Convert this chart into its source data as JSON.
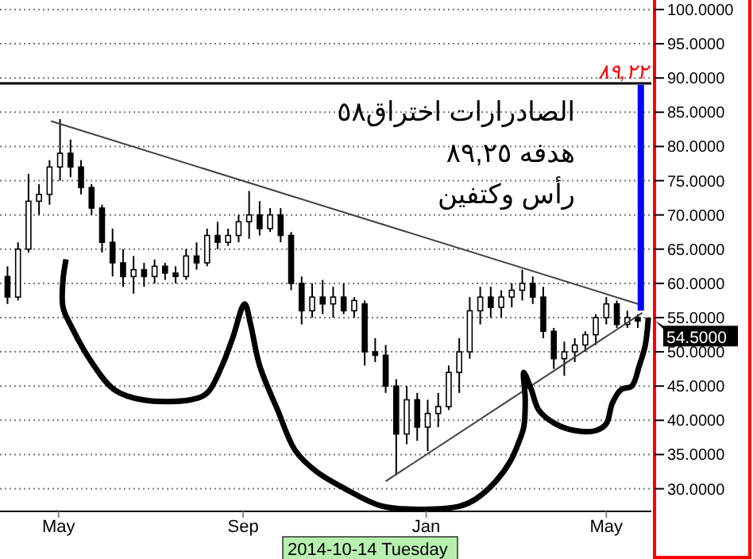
{
  "chart_data": {
    "type": "candlestick",
    "x": [
      "2014-03-28",
      "2014-04-04",
      "2014-04-11",
      "2014-04-18",
      "2014-04-25",
      "2014-05-02",
      "2014-05-09",
      "2014-05-16",
      "2014-05-23",
      "2014-05-30",
      "2014-06-06",
      "2014-06-13",
      "2014-06-20",
      "2014-06-27",
      "2014-07-04",
      "2014-07-11",
      "2014-07-18",
      "2014-07-25",
      "2014-08-01",
      "2014-08-08",
      "2014-08-15",
      "2014-08-22",
      "2014-08-29",
      "2014-09-05",
      "2014-09-12",
      "2014-09-19",
      "2014-09-26",
      "2014-10-03",
      "2014-10-10",
      "2014-10-17",
      "2014-10-24",
      "2014-10-31",
      "2014-11-07",
      "2014-11-14",
      "2014-11-21",
      "2014-11-28",
      "2014-12-05",
      "2014-12-12",
      "2014-12-19",
      "2014-12-26",
      "2015-01-02",
      "2015-01-09",
      "2015-01-16",
      "2015-01-23",
      "2015-01-30",
      "2015-02-06",
      "2015-02-13",
      "2015-02-20",
      "2015-02-27",
      "2015-03-06",
      "2015-03-13",
      "2015-03-20",
      "2015-03-27",
      "2015-04-03",
      "2015-04-10",
      "2015-04-17",
      "2015-04-24",
      "2015-05-01",
      "2015-05-08",
      "2015-05-15",
      "2015-05-22"
    ],
    "ohlc": [
      [
        61,
        62.5,
        57,
        58
      ],
      [
        58,
        66,
        57.5,
        65
      ],
      [
        65,
        76,
        64.5,
        72
      ],
      [
        72,
        74.5,
        70,
        73
      ],
      [
        73,
        78,
        71.5,
        77
      ],
      [
        77,
        84,
        75,
        79
      ],
      [
        79,
        81,
        75.5,
        77
      ],
      [
        77,
        78,
        73,
        74
      ],
      [
        74,
        74.5,
        70,
        71
      ],
      [
        71,
        71.5,
        64.5,
        66
      ],
      [
        66,
        68,
        61,
        63
      ],
      [
        63,
        65,
        59.5,
        61
      ],
      [
        61,
        64,
        58.5,
        62
      ],
      [
        62,
        63,
        59.5,
        61
      ],
      [
        61,
        63.5,
        60,
        62.5
      ],
      [
        62.5,
        63,
        60.5,
        61.5
      ],
      [
        61.5,
        62.5,
        60,
        61
      ],
      [
        61,
        65,
        60.5,
        64
      ],
      [
        64,
        66,
        62,
        63
      ],
      [
        63,
        68,
        62.5,
        67
      ],
      [
        67,
        69,
        65,
        66
      ],
      [
        66,
        68,
        65.5,
        67
      ],
      [
        67,
        70,
        66,
        69
      ],
      [
        69,
        73.5,
        66.5,
        70
      ],
      [
        70,
        72,
        67,
        68
      ],
      [
        68,
        71,
        67.5,
        70
      ],
      [
        70,
        71,
        66,
        67
      ],
      [
        67,
        67.5,
        59,
        60
      ],
      [
        60,
        61,
        54,
        56
      ],
      [
        56,
        60,
        55,
        58
      ],
      [
        58,
        60.5,
        55.5,
        57
      ],
      [
        57,
        59.5,
        55,
        58
      ],
      [
        58,
        60,
        55.5,
        56
      ],
      [
        56,
        58,
        55,
        57.5
      ],
      [
        57,
        57.5,
        48,
        50
      ],
      [
        50,
        52,
        48.5,
        49.5
      ],
      [
        49.5,
        51,
        44,
        45
      ],
      [
        45,
        46,
        32,
        38
      ],
      [
        38,
        45,
        36.5,
        43
      ],
      [
        43,
        44,
        37,
        39
      ],
      [
        39,
        43,
        35.5,
        41
      ],
      [
        41,
        44,
        39,
        42
      ],
      [
        42,
        48,
        41.5,
        47
      ],
      [
        47,
        52,
        44,
        50
      ],
      [
        50,
        58,
        49,
        56
      ],
      [
        56,
        59.5,
        54,
        58
      ],
      [
        58,
        59.5,
        55,
        56.5
      ],
      [
        56.5,
        59,
        55,
        58
      ],
      [
        58,
        60,
        56.5,
        59
      ],
      [
        59,
        62,
        57.5,
        60
      ],
      [
        60,
        61,
        57,
        58
      ],
      [
        58,
        59.5,
        52,
        53
      ],
      [
        53,
        53.5,
        47.5,
        49
      ],
      [
        49,
        51.5,
        46.5,
        50
      ],
      [
        50,
        52,
        48.5,
        51
      ],
      [
        51,
        53,
        50,
        52.5
      ],
      [
        52.5,
        55.5,
        51,
        55
      ],
      [
        55,
        58,
        54,
        57
      ],
      [
        57,
        57.5,
        53.5,
        54
      ],
      [
        54,
        56,
        53.5,
        55
      ],
      [
        55,
        55.5,
        53.5,
        54.5
      ]
    ],
    "series": [
      {
        "type": "line",
        "color": "#404040",
        "x": [
          "2014-04-26",
          "2015-05-25"
        ],
        "values": [
          83.7,
          56.8
        ]
      },
      {
        "type": "line",
        "color": "#404040",
        "x": [
          "2014-12-05",
          "2015-05-25"
        ],
        "values": [
          31.1,
          55.7
        ]
      },
      {
        "type": "line",
        "color": "#0000ff",
        "x": [
          "2015-05-24",
          "2015-05-24"
        ],
        "values": [
          56,
          89
        ]
      },
      {
        "type": "line",
        "color": "#000000",
        "x": [
          "2014-05-06",
          "2014-05-04",
          "2014-05-04",
          "2014-05-10",
          "2014-05-23",
          "2014-06-07",
          "2014-06-26",
          "2014-07-28",
          "2014-08-08",
          "2014-08-18",
          "2014-08-25",
          "2014-09-02",
          "2014-09-06",
          "2014-09-12",
          "2014-09-24",
          "2014-10-06",
          "2014-10-20",
          "2014-11-08",
          "2014-12-02",
          "2014-12-31",
          "2015-01-24",
          "2015-02-03",
          "2015-02-16",
          "2015-02-26",
          "2015-03-04",
          "2015-03-07",
          "2015-03-08",
          "2015-03-07",
          "2015-03-12",
          "2015-03-17",
          "2015-03-28",
          "2015-04-10",
          "2015-04-24",
          "2015-05-01",
          "2015-05-05",
          "2015-05-11",
          "2015-05-18",
          "2015-05-23",
          "2015-05-27",
          "2015-05-29"
        ],
        "values": [
          63.5,
          60.5,
          56.5,
          53.5,
          48.5,
          44.5,
          43,
          43,
          44,
          48,
          52,
          57,
          54,
          48,
          41.5,
          35.5,
          32.5,
          30,
          27.5,
          27,
          27.5,
          28.5,
          31,
          34,
          37,
          39,
          43,
          47,
          44.5,
          41.5,
          39.5,
          38.5,
          38.5,
          39.5,
          42.5,
          44.5,
          45,
          48,
          51,
          55
        ]
      }
    ],
    "xlim": [
      "2014-03-23",
      "2015-05-31"
    ],
    "xticks": [
      {
        "value": "2014-05-01",
        "label": "May"
      },
      {
        "value": "2014-09-01",
        "label": "Sep"
      },
      {
        "value": "2015-01-01",
        "label": "Jan"
      },
      {
        "value": "2015-05-01",
        "label": "May"
      }
    ],
    "ylim": [
      26.7,
      100
    ],
    "yticks": [
      {
        "value": 30,
        "label": "30.0000"
      },
      {
        "value": 35,
        "label": "35.0000"
      },
      {
        "value": 40,
        "label": "40.0000"
      },
      {
        "value": 45,
        "label": "45.0000"
      },
      {
        "value": 50,
        "label": "50.0000"
      },
      {
        "value": 55,
        "label": "55.0000"
      },
      {
        "value": 60,
        "label": "60.0000"
      },
      {
        "value": 65,
        "label": "65.0000"
      },
      {
        "value": 70,
        "label": "70.0000"
      },
      {
        "value": 75,
        "label": "75.0000"
      },
      {
        "value": 80,
        "label": "80.0000"
      },
      {
        "value": 85,
        "label": "85.0000"
      },
      {
        "value": 90,
        "label": "90.0000"
      },
      {
        "value": 95,
        "label": "95.0000"
      },
      {
        "value": 100,
        "label": "100.0000"
      }
    ],
    "grid": "y",
    "ref_lines": [
      {
        "axis": "y",
        "value": 89.22,
        "label": "٨٩,٢٢",
        "color": "#000000"
      }
    ],
    "annotations": [
      "الصادرارات اختراق٥٨",
      "هدفه ٨٩,٢٥",
      "رأس وكتفين",
      {
        "text": "54.5000",
        "x": "2015-05-22",
        "y": 54.5
      },
      "2014-10-14 Tuesday"
    ]
  }
}
